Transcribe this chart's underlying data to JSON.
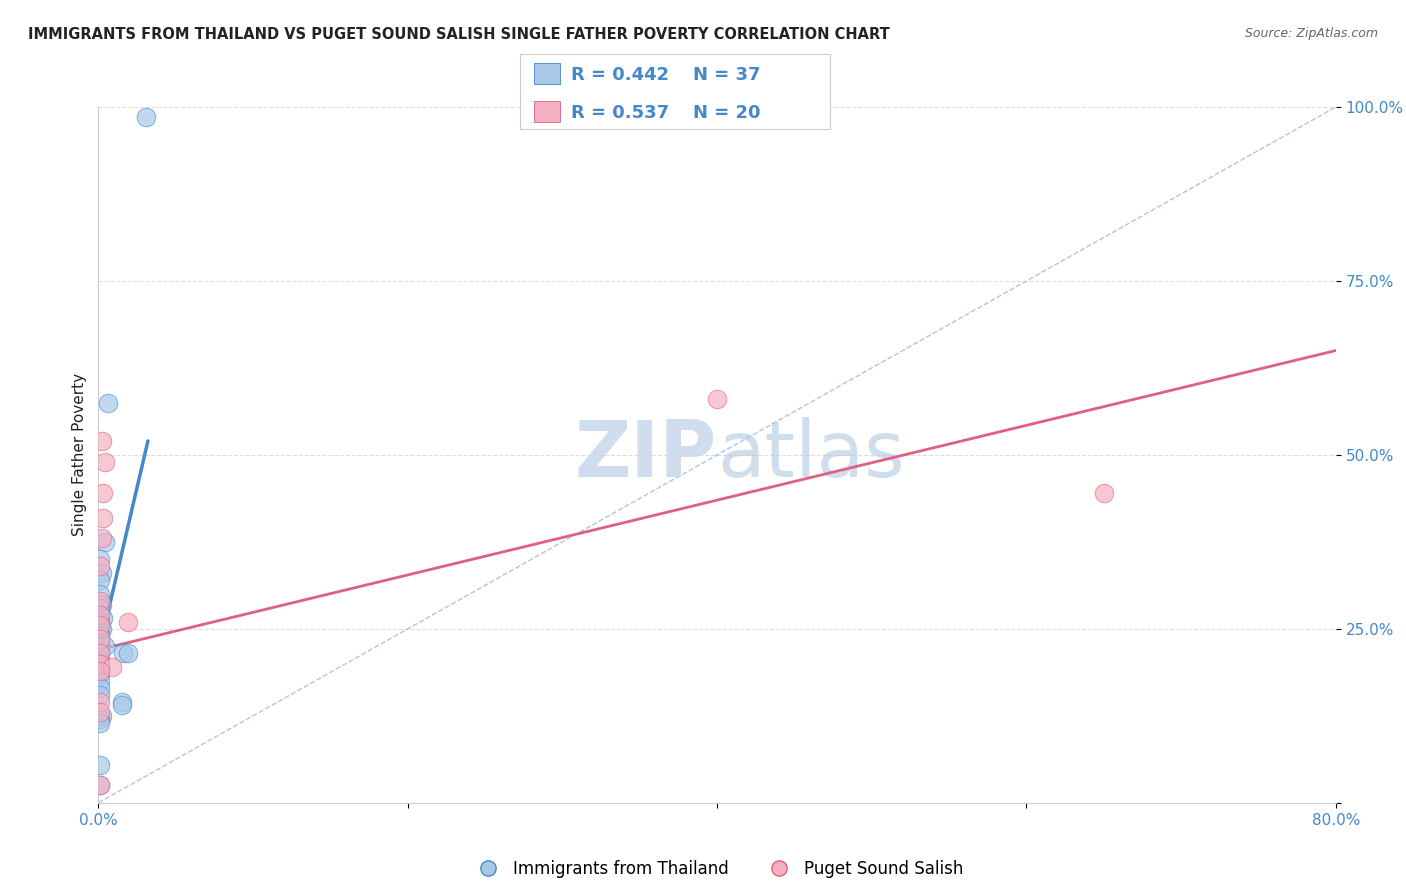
{
  "title": "IMMIGRANTS FROM THAILAND VS PUGET SOUND SALISH SINGLE FATHER POVERTY CORRELATION CHART",
  "source": "Source: ZipAtlas.com",
  "ylabel": "Single Father Poverty",
  "xlim": [
    0.0,
    0.8
  ],
  "ylim": [
    0.0,
    1.0
  ],
  "color_blue": "#a8c8e8",
  "color_pink": "#f4b0c0",
  "color_blue_line": "#4488cc",
  "color_pink_line": "#e06080",
  "color_blue_text": "#4488cc",
  "color_grid": "#dddddd",
  "color_diag": "#99aacc",
  "title_color": "#222222",
  "source_color": "#666666",
  "watermark_color": "#c8d8ec",
  "blue_points_x": [
    0.031,
    0.006,
    0.004,
    0.001,
    0.002,
    0.001,
    0.001,
    0.002,
    0.001,
    0.001,
    0.003,
    0.001,
    0.002,
    0.001,
    0.001,
    0.001,
    0.001,
    0.001,
    0.001,
    0.001,
    0.001,
    0.001,
    0.001,
    0.001,
    0.001,
    0.001,
    0.001,
    0.016,
    0.019,
    0.004,
    0.002,
    0.001,
    0.001,
    0.001,
    0.015,
    0.015,
    0.001
  ],
  "blue_points_y": [
    0.985,
    0.575,
    0.375,
    0.35,
    0.33,
    0.32,
    0.3,
    0.285,
    0.28,
    0.27,
    0.265,
    0.26,
    0.25,
    0.245,
    0.24,
    0.23,
    0.225,
    0.22,
    0.215,
    0.205,
    0.2,
    0.195,
    0.19,
    0.185,
    0.175,
    0.165,
    0.155,
    0.215,
    0.215,
    0.225,
    0.125,
    0.12,
    0.115,
    0.055,
    0.145,
    0.14,
    0.025
  ],
  "pink_points_x": [
    0.002,
    0.004,
    0.003,
    0.003,
    0.002,
    0.001,
    0.001,
    0.001,
    0.001,
    0.001,
    0.001,
    0.001,
    0.019,
    0.009,
    0.001,
    0.001,
    0.001,
    0.4,
    0.65,
    0.001
  ],
  "pink_points_y": [
    0.52,
    0.49,
    0.445,
    0.41,
    0.38,
    0.34,
    0.29,
    0.27,
    0.255,
    0.235,
    0.215,
    0.2,
    0.26,
    0.195,
    0.19,
    0.145,
    0.13,
    0.58,
    0.445,
    0.025
  ],
  "blue_line_x": [
    0.0,
    0.032
  ],
  "blue_line_y": [
    0.215,
    0.52
  ],
  "pink_line_x": [
    0.0,
    0.8
  ],
  "pink_line_y": [
    0.22,
    0.65
  ],
  "diag_line_x": [
    0.0,
    0.8
  ],
  "diag_line_y": [
    0.0,
    1.0
  ],
  "legend_r1": "R = 0.442",
  "legend_n1": "N = 37",
  "legend_r2": "R = 0.537",
  "legend_n2": "N = 20",
  "bottom_label_blue": "Immigrants from Thailand",
  "bottom_label_pink": "Puget Sound Salish"
}
